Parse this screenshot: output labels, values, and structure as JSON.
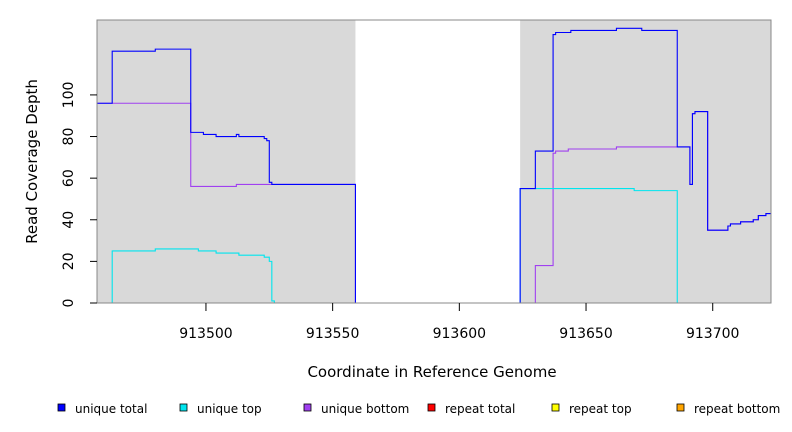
{
  "chart_data": {
    "type": "line",
    "xlabel": "Coordinate in Reference Genome",
    "ylabel": "Read Coverage Depth",
    "xlim": [
      913457,
      913723
    ],
    "ylim": [
      0,
      136
    ],
    "x_ticks": [
      913500,
      913550,
      913600,
      913650,
      913700
    ],
    "x_tick_labels": [
      "913500",
      "913550",
      "913600",
      "913650",
      "913700"
    ],
    "y_ticks": [
      0,
      20,
      40,
      60,
      80,
      100
    ],
    "y_tick_labels": [
      "0",
      "20",
      "40",
      "60",
      "80",
      "100"
    ],
    "grid": false,
    "shaded_regions": [
      {
        "x0": 913457,
        "x1": 913559,
        "color": "#d9d9d9"
      },
      {
        "x0": 913624,
        "x1": 913723,
        "color": "#d9d9d9"
      }
    ],
    "legend_position": "bottom",
    "series": [
      {
        "name": "unique total",
        "color": "#0000ff",
        "points": [
          [
            913457,
            96
          ],
          [
            913463,
            96
          ],
          [
            913463,
            121
          ],
          [
            913480,
            121
          ],
          [
            913480,
            122
          ],
          [
            913494,
            122
          ],
          [
            913494,
            82
          ],
          [
            913499,
            82
          ],
          [
            913499,
            81
          ],
          [
            913504,
            81
          ],
          [
            913504,
            80
          ],
          [
            913512,
            80
          ],
          [
            913512,
            81
          ],
          [
            913513,
            81
          ],
          [
            913513,
            80
          ],
          [
            913523,
            80
          ],
          [
            913523,
            79
          ],
          [
            913524,
            79
          ],
          [
            913524,
            78
          ],
          [
            913525,
            78
          ],
          [
            913525,
            58
          ],
          [
            913526,
            58
          ],
          [
            913526,
            57
          ],
          [
            913559,
            57
          ],
          [
            913559,
            0
          ],
          [
            913624,
            0
          ],
          [
            913624,
            55
          ],
          [
            913630,
            55
          ],
          [
            913630,
            73
          ],
          [
            913637,
            73
          ],
          [
            913637,
            129
          ],
          [
            913638,
            129
          ],
          [
            913638,
            130
          ],
          [
            913644,
            130
          ],
          [
            913644,
            131
          ],
          [
            913662,
            131
          ],
          [
            913662,
            132
          ],
          [
            913672,
            132
          ],
          [
            913672,
            131
          ],
          [
            913686,
            131
          ],
          [
            913686,
            75
          ],
          [
            913691,
            75
          ],
          [
            913691,
            57
          ],
          [
            913692,
            57
          ],
          [
            913692,
            91
          ],
          [
            913693,
            91
          ],
          [
            913693,
            92
          ],
          [
            913698,
            92
          ],
          [
            913698,
            35
          ],
          [
            913706,
            35
          ],
          [
            913706,
            37
          ],
          [
            913707,
            37
          ],
          [
            913707,
            38
          ],
          [
            913711,
            38
          ],
          [
            913711,
            39
          ],
          [
            913716,
            39
          ],
          [
            913716,
            40
          ],
          [
            913718,
            40
          ],
          [
            913718,
            42
          ],
          [
            913721,
            42
          ],
          [
            913721,
            43
          ],
          [
            913723,
            43
          ]
        ]
      },
      {
        "name": "unique top",
        "color": "#00e5ee",
        "points": [
          [
            913457,
            0
          ],
          [
            913463,
            0
          ],
          [
            913463,
            25
          ],
          [
            913480,
            25
          ],
          [
            913480,
            26
          ],
          [
            913497,
            26
          ],
          [
            913497,
            25
          ],
          [
            913504,
            25
          ],
          [
            913504,
            24
          ],
          [
            913513,
            24
          ],
          [
            913513,
            23
          ],
          [
            913523,
            23
          ],
          [
            913523,
            22
          ],
          [
            913525,
            22
          ],
          [
            913525,
            20
          ],
          [
            913526,
            20
          ],
          [
            913526,
            1
          ],
          [
            913527,
            1
          ],
          [
            913527,
            0
          ],
          [
            913624,
            0
          ],
          [
            913624,
            55
          ],
          [
            913669,
            55
          ],
          [
            913669,
            54
          ],
          [
            913686,
            54
          ],
          [
            913686,
            0
          ],
          [
            913723,
            0
          ]
        ]
      },
      {
        "name": "unique bottom",
        "color": "#a040f0",
        "points": [
          [
            913457,
            96
          ],
          [
            913494,
            96
          ],
          [
            913494,
            56
          ],
          [
            913512,
            56
          ],
          [
            913512,
            57
          ],
          [
            913526,
            57
          ],
          [
            913526,
            57
          ],
          [
            913559,
            57
          ],
          [
            913559,
            0
          ],
          [
            913630,
            0
          ],
          [
            913630,
            18
          ],
          [
            913637,
            18
          ],
          [
            913637,
            72
          ],
          [
            913638,
            72
          ],
          [
            913638,
            73
          ],
          [
            913643,
            73
          ],
          [
            913643,
            74
          ],
          [
            913662,
            74
          ],
          [
            913662,
            75
          ],
          [
            913686,
            75
          ],
          [
            913686,
            75
          ],
          [
            913691,
            75
          ],
          [
            913691,
            57
          ],
          [
            913692,
            57
          ],
          [
            913692,
            91
          ],
          [
            913693,
            91
          ],
          [
            913693,
            92
          ],
          [
            913698,
            92
          ],
          [
            913698,
            35
          ],
          [
            913706,
            35
          ],
          [
            913706,
            37
          ],
          [
            913707,
            37
          ],
          [
            913707,
            38
          ],
          [
            913711,
            38
          ],
          [
            913711,
            39
          ],
          [
            913716,
            39
          ],
          [
            913716,
            40
          ],
          [
            913718,
            40
          ],
          [
            913718,
            42
          ],
          [
            913721,
            42
          ],
          [
            913721,
            43
          ],
          [
            913723,
            43
          ]
        ]
      },
      {
        "name": "repeat total",
        "color": "#ff0000",
        "points": [
          [
            913457,
            0
          ],
          [
            913723,
            0
          ]
        ]
      },
      {
        "name": "repeat top",
        "color": "#ffff00",
        "points": [
          [
            913457,
            0
          ],
          [
            913723,
            0
          ]
        ]
      },
      {
        "name": "repeat bottom",
        "color": "#ffa500",
        "points": [
          [
            913457,
            0
          ],
          [
            913723,
            0
          ]
        ]
      }
    ]
  }
}
